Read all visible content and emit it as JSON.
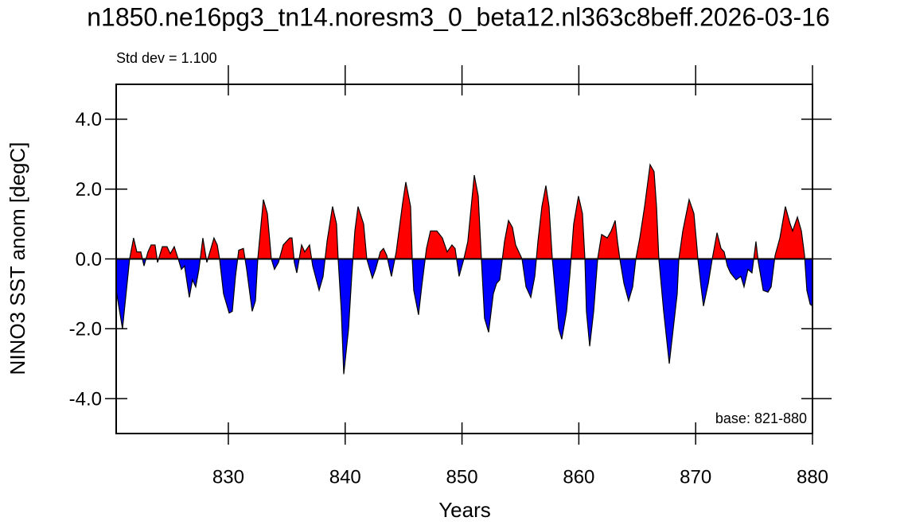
{
  "chart_data": {
    "type": "area",
    "title": "n1850.ne16pg3_tn14.noresm3_0_beta12.nl363c8beff.2026-03-16",
    "subtitle": "Std dev = 1.100",
    "annotation": "base: 821-880",
    "xlabel": "Years",
    "ylabel": "NINO3 SST anom [degC]",
    "positive_color": "#ff0000",
    "negative_color": "#0000ff",
    "line_color": "#000000",
    "xlim": [
      820.4,
      880
    ],
    "ylim": [
      -5,
      5
    ],
    "xticks": [
      830,
      840,
      850,
      860,
      870,
      880
    ],
    "yticks": [
      {
        "value": -4,
        "label": "-4.0"
      },
      {
        "value": -2,
        "label": "-2.0"
      },
      {
        "value": 0,
        "label": "0.0"
      },
      {
        "value": 2,
        "label": "2.0"
      },
      {
        "value": 4,
        "label": "4.0"
      }
    ],
    "x": [
      820.4,
      820.94,
      821.55,
      821.89,
      822.17,
      822.51,
      822.78,
      823.12,
      823.39,
      823.73,
      823.94,
      824.35,
      824.75,
      825.03,
      825.37,
      825.71,
      825.98,
      826.25,
      826.66,
      826.93,
      827.21,
      827.48,
      827.82,
      828.16,
      828.77,
      829.05,
      829.25,
      829.59,
      830.07,
      830.34,
      830.61,
      830.89,
      831.29,
      831.57,
      832.04,
      832.32,
      832.52,
      833.0,
      833.34,
      833.68,
      833.95,
      834.29,
      834.7,
      835.25,
      835.45,
      835.65,
      835.86,
      836.27,
      836.54,
      836.95,
      837.22,
      837.77,
      838.11,
      838.45,
      838.92,
      839.26,
      839.4,
      839.67,
      839.88,
      840.29,
      840.56,
      840.83,
      841.1,
      841.58,
      841.85,
      842.33,
      842.6,
      843.01,
      843.28,
      843.56,
      843.96,
      844.37,
      844.92,
      845.19,
      845.6,
      845.74,
      845.87,
      846.28,
      846.55,
      846.96,
      847.3,
      847.85,
      848.32,
      848.73,
      849.14,
      849.41,
      849.75,
      850.16,
      850.5,
      851.05,
      851.39,
      851.66,
      851.93,
      852.28,
      852.68,
      852.96,
      853.23,
      853.64,
      853.98,
      854.32,
      854.59,
      855.14,
      855.48,
      855.89,
      856.23,
      856.5,
      856.84,
      857.18,
      857.45,
      857.73,
      858.0,
      858.27,
      858.54,
      858.95,
      859.22,
      859.56,
      859.97,
      860.31,
      860.52,
      860.65,
      860.93,
      861.27,
      861.61,
      861.95,
      862.43,
      862.77,
      863.11,
      863.31,
      863.51,
      863.86,
      864.26,
      864.61,
      864.88,
      865.22,
      865.63,
      866.1,
      866.44,
      866.65,
      866.85,
      867.26,
      867.74,
      868.08,
      868.42,
      868.56,
      868.9,
      869.44,
      869.85,
      870.12,
      870.19,
      870.46,
      870.67,
      871.08,
      871.42,
      871.83,
      872.17,
      872.44,
      872.71,
      872.98,
      873.46,
      873.87,
      874.14,
      874.48,
      874.82,
      875.16,
      875.37,
      875.78,
      876.19,
      876.46,
      876.8,
      877.21,
      877.68,
      878.09,
      878.3,
      878.71,
      879.05,
      879.32,
      879.52,
      879.8,
      880.0
    ],
    "values": [
      -0.9,
      -2.0,
      0,
      0.6,
      0.2,
      0.2,
      -0.2,
      0.2,
      0.4,
      0.4,
      -0.1,
      0.35,
      0.35,
      0.15,
      0.35,
      0,
      -0.3,
      -0.2,
      -1.1,
      -0.6,
      -0.8,
      -0.3,
      0.6,
      -0.1,
      0.6,
      0.4,
      0,
      -1.0,
      -1.55,
      -1.5,
      -0.5,
      0.25,
      0.3,
      -0.3,
      -1.5,
      -1.2,
      0,
      1.7,
      1.3,
      0,
      -0.3,
      -0.1,
      0.4,
      0.6,
      0.6,
      -0.1,
      -0.4,
      0.4,
      0.2,
      0.4,
      -0.2,
      -0.9,
      -0.5,
      0.5,
      1.5,
      1.0,
      0,
      -1.5,
      -3.3,
      -2.0,
      -0.5,
      0.8,
      1.5,
      1.0,
      0,
      -0.55,
      -0.3,
      0.2,
      0.3,
      0.1,
      -0.5,
      0.2,
      1.6,
      2.2,
      1.5,
      0,
      -0.9,
      -1.6,
      -0.8,
      0.3,
      0.8,
      0.8,
      0.6,
      0.2,
      0.4,
      0.3,
      -0.5,
      0,
      0.5,
      2.4,
      1.8,
      0,
      -1.7,
      -2.1,
      -1.0,
      -0.7,
      -0.6,
      0.5,
      1.1,
      0.9,
      0.4,
      0,
      -0.8,
      -1.1,
      -0.5,
      0.5,
      1.5,
      2.1,
      1.5,
      0,
      -1.0,
      -2.0,
      -2.3,
      -1.5,
      -0.5,
      1.0,
      1.8,
      1.3,
      0,
      -1.5,
      -2.5,
      -1.5,
      0,
      0.7,
      0.6,
      0.8,
      1.1,
      0.5,
      0,
      -0.7,
      -1.2,
      -0.8,
      0,
      0.6,
      1.5,
      2.7,
      2.5,
      1.5,
      0,
      -1.5,
      -3.0,
      -2.0,
      -1.0,
      0,
      0.8,
      1.7,
      1.3,
      0.3,
      0,
      -0.8,
      -1.35,
      -0.7,
      0,
      0.75,
      0.3,
      0.2,
      -0.2,
      -0.4,
      -0.6,
      -0.5,
      -0.8,
      -0.3,
      -0.4,
      0.5,
      -0.1,
      -0.9,
      -0.95,
      -0.8,
      0.1,
      0.6,
      1.5,
      1.0,
      0.8,
      1.2,
      0.8,
      0.1,
      -0.9,
      -1.3,
      -1.35
    ]
  }
}
